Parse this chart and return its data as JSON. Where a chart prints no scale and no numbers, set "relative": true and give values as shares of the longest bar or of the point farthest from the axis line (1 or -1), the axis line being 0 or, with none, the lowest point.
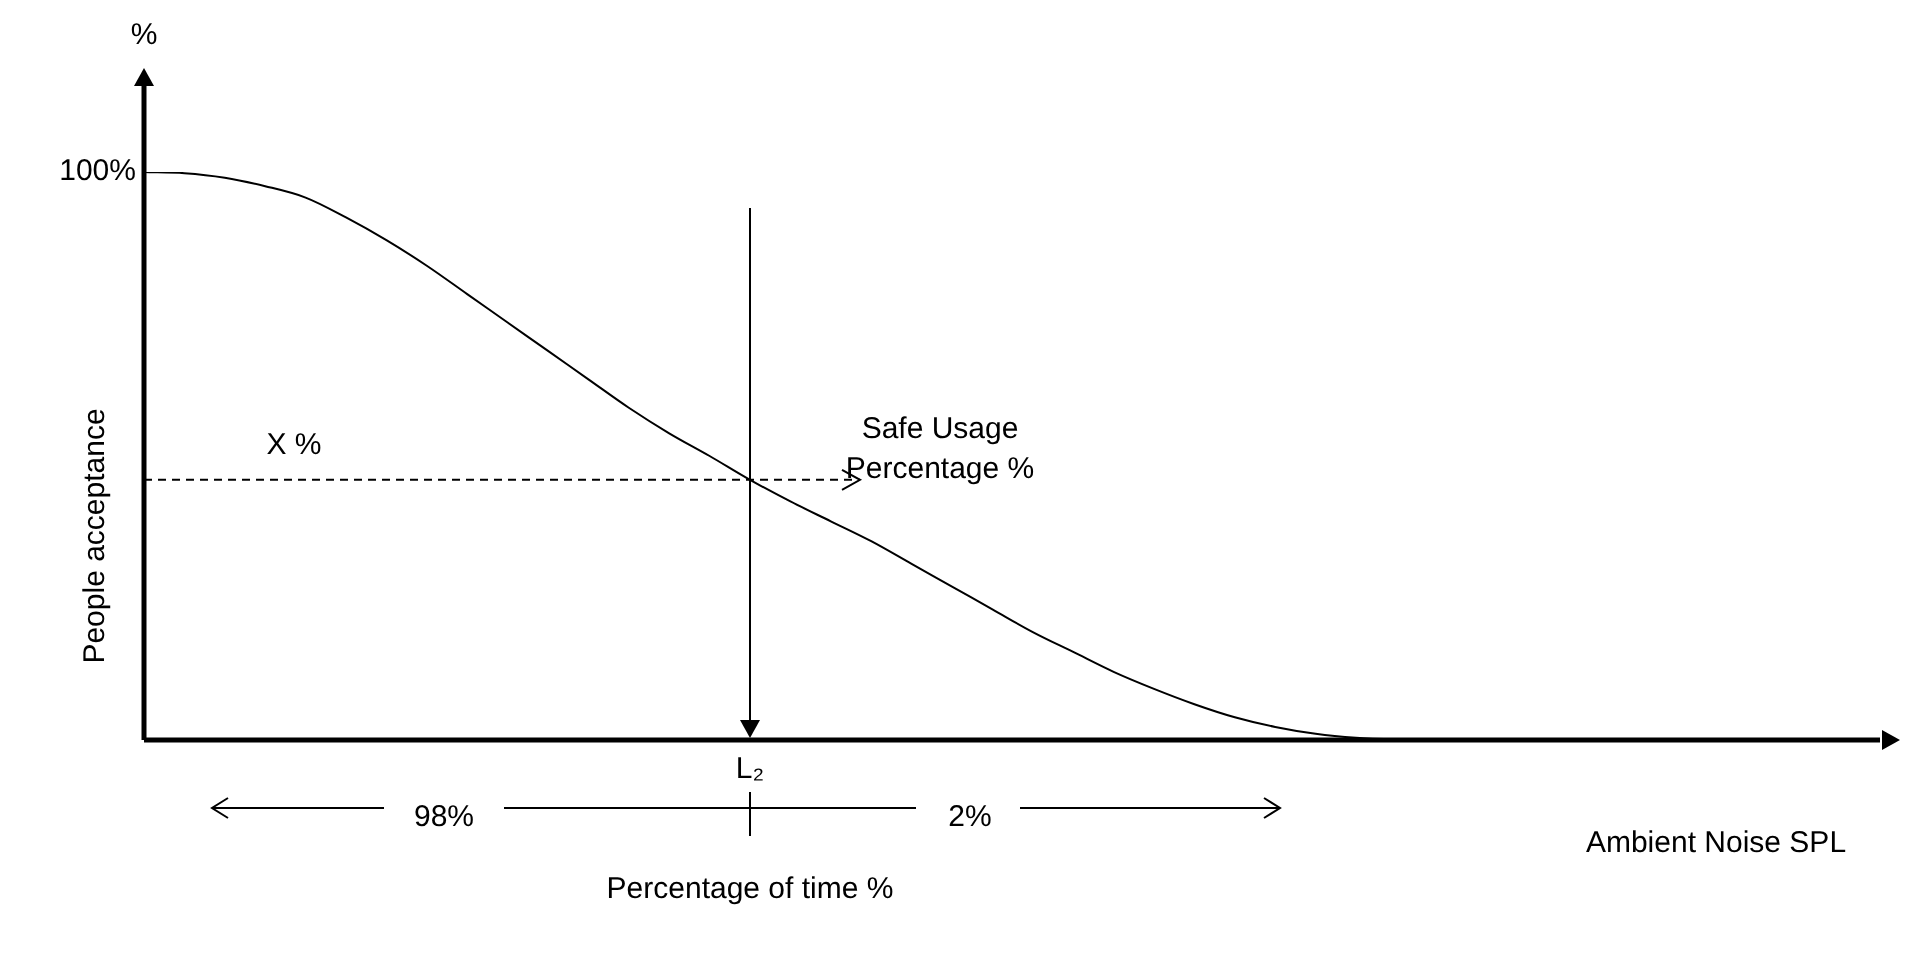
{
  "chart_data": {
    "type": "line",
    "relative": true,
    "ylabel": "People acceptance",
    "xlabel": "Ambient Noise SPL",
    "color": "#000000",
    "marker": "none",
    "line_style": "solid",
    "legend": false,
    "categories": [
      null,
      null,
      null,
      null,
      null,
      null,
      null,
      null,
      null,
      null,
      null,
      null,
      null,
      null,
      null,
      null,
      null,
      null,
      null,
      null,
      null,
      null,
      null,
      null,
      null,
      null,
      null,
      null,
      null,
      null,
      null,
      null,
      null,
      null,
      null,
      null,
      null,
      null,
      null,
      null,
      null
    ],
    "values": [
      1.0,
      0.998,
      0.99,
      0.975,
      0.955,
      0.92,
      0.88,
      0.835,
      0.785,
      0.735,
      0.685,
      0.635,
      0.585,
      0.54,
      0.5,
      0.458,
      0.42,
      0.385,
      0.35,
      0.31,
      0.27,
      0.23,
      0.19,
      0.155,
      0.12,
      0.09,
      0.063,
      0.04,
      0.023,
      0.011,
      0.004,
      0.001,
      0,
      null,
      null,
      null,
      null,
      null,
      null,
      null,
      null
    ],
    "ref_lines": [
      {
        "axis": "y",
        "value": 0.458,
        "label": "X %",
        "line_style": "dashed"
      }
    ],
    "annotations": [
      "%",
      "100%",
      "Safe Usage Percentage %",
      "98%",
      "2%",
      "Percentage of time %",
      "L₂"
    ]
  }
}
